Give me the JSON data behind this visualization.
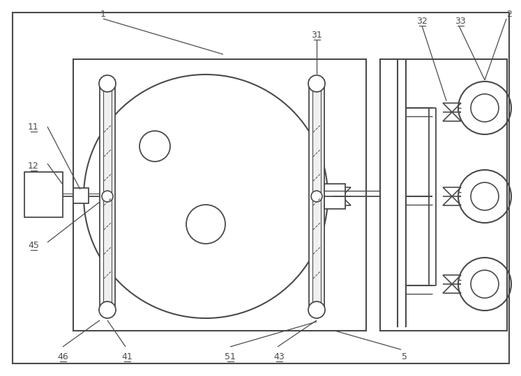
{
  "bg_color": "#ffffff",
  "line_color": "#4a4a4a",
  "fig_width": 7.47,
  "fig_height": 5.4,
  "dpi": 100
}
